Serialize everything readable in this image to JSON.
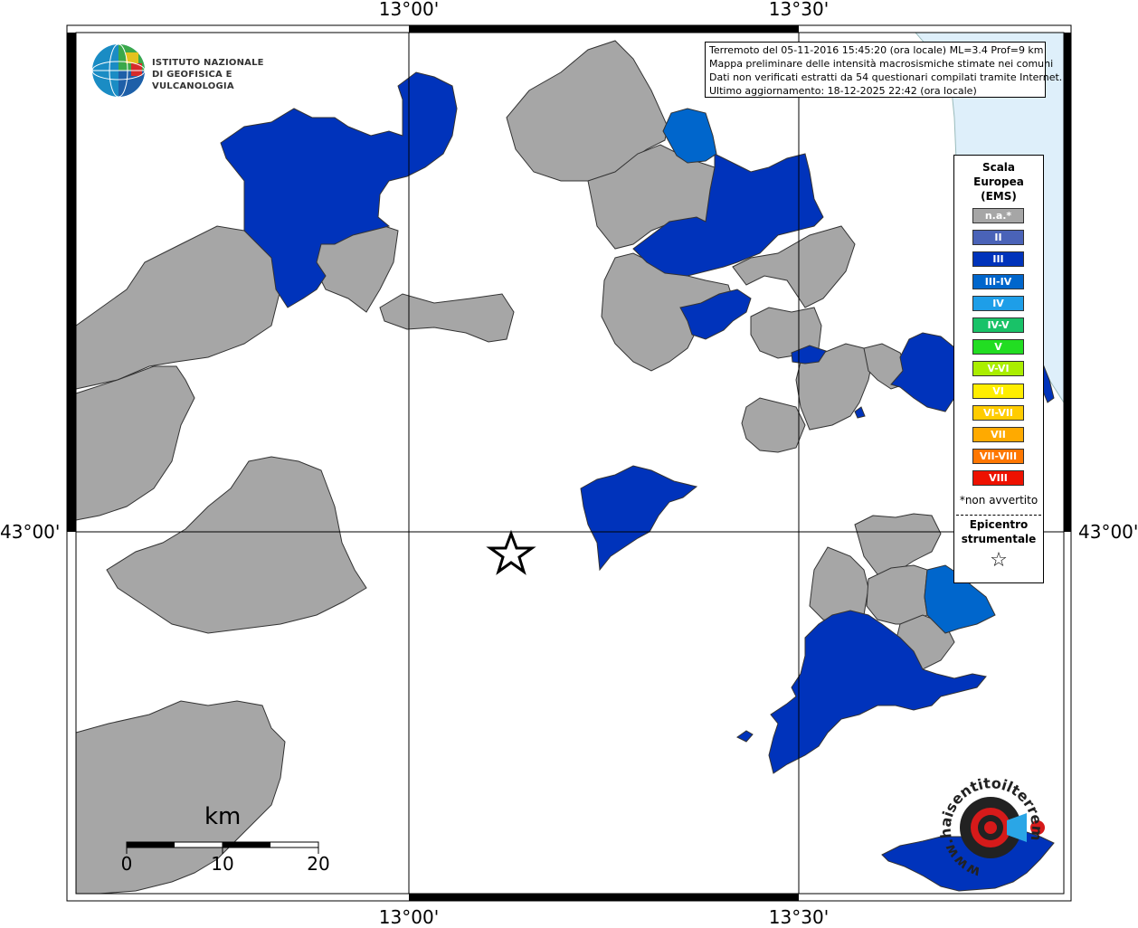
{
  "axes": {
    "top_labels": [
      "13°00'",
      "13°30'"
    ],
    "bottom_labels": [
      "13°00'",
      "13°30'"
    ],
    "left_label": "43°00'",
    "right_label": "43°00'"
  },
  "info": {
    "line1": "Terremoto del 05-11-2016 15:45:20 (ora locale) ML=3.4 Prof=9 km",
    "line2": "Mappa preliminare delle intensità macrosismiche stimate nei comuni",
    "line3": "Dati non verificati estratti da 54 questionari compilati tramite Internet.",
    "line4": "Ultimo aggiornamento: 18-12-2025 22:42 (ora locale)"
  },
  "logo_ingv": {
    "line1": "ISTITUTO NAZIONALE",
    "line2": "DI GEOFISICA E VULCANOLOGIA"
  },
  "legend": {
    "title1": "Scala",
    "title2": "Europea",
    "title3": "(EMS)",
    "items": [
      {
        "label": "n.a.*",
        "color": "#a6a6a6"
      },
      {
        "label": "II",
        "color": "#4a63b8"
      },
      {
        "label": "III",
        "color": "#0033bb"
      },
      {
        "label": "III-IV",
        "color": "#0066cc"
      },
      {
        "label": "IV",
        "color": "#1e9ee8"
      },
      {
        "label": "IV-V",
        "color": "#19c268"
      },
      {
        "label": "V",
        "color": "#22dd22"
      },
      {
        "label": "V-VI",
        "color": "#aaee00"
      },
      {
        "label": "VI",
        "color": "#ffee00"
      },
      {
        "label": "VI-VII",
        "color": "#ffcc00"
      },
      {
        "label": "VII",
        "color": "#ffaa00"
      },
      {
        "label": "VII-VIII",
        "color": "#ff7700"
      },
      {
        "label": "VIII",
        "color": "#ee1100"
      }
    ],
    "note": "*non avvertito",
    "epicenter1": "Epicentro",
    "epicenter2": "strumentale",
    "epicenter_symbol": "☆"
  },
  "scale_bar": {
    "unit": "km",
    "ticks": [
      "0",
      "10",
      "20"
    ]
  },
  "logo_hsit": {
    "text": "www.haisentitoilterremoto.it"
  },
  "colors": {
    "na": "#a6a6a6",
    "III": "#0033bb",
    "III-IV": "#0066cc",
    "sea": "#deeffa"
  }
}
